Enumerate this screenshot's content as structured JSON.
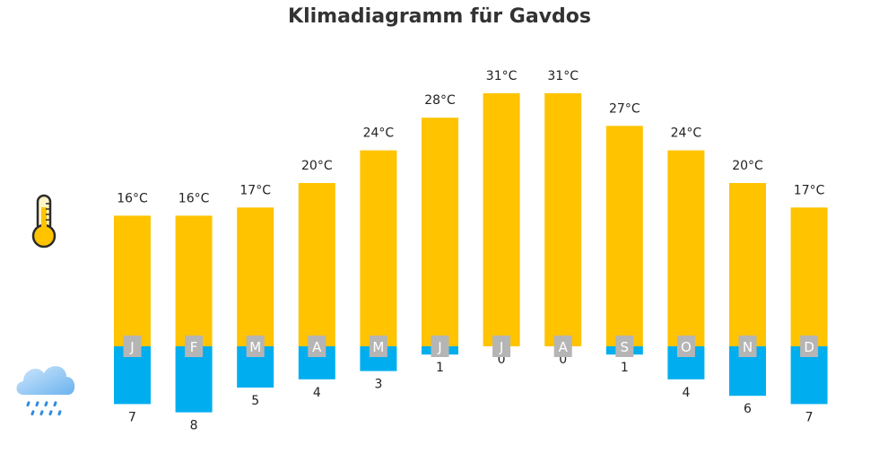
{
  "chart_data": {
    "type": "bar",
    "title": "Klimadiagramm für Gavdos",
    "categories": [
      "J",
      "F",
      "M",
      "A",
      "M",
      "J",
      "J",
      "A",
      "S",
      "O",
      "N",
      "D"
    ],
    "series": [
      {
        "values": [
          16,
          16,
          17,
          20,
          24,
          28,
          31,
          31,
          27,
          24,
          20,
          17
        ],
        "unit": "°C",
        "color": "#ffc300"
      },
      {
        "values": [
          7,
          8,
          5,
          4,
          3,
          1,
          0,
          0,
          1,
          4,
          6,
          7
        ],
        "color": "#00aeef"
      }
    ],
    "month_label_bg": "#b5b5b5"
  },
  "icons": {
    "temperature": "thermometer-icon",
    "precipitation": "rain-cloud-icon"
  }
}
